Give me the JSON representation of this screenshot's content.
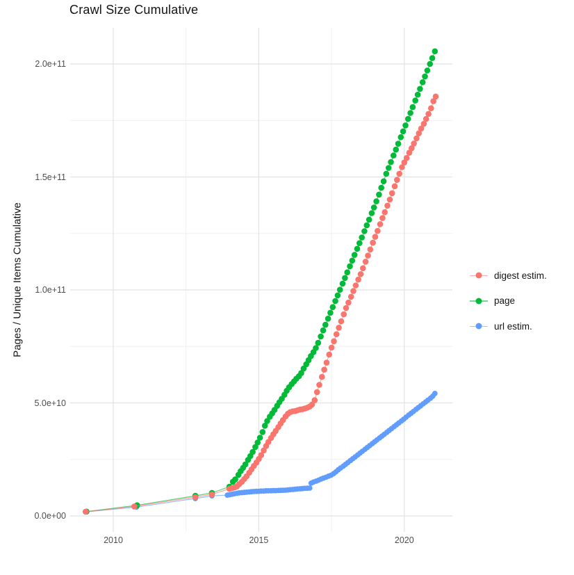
{
  "chart_data": {
    "type": "scatter",
    "title": "Crawl Size Cumulative",
    "xlabel": "",
    "ylabel": "Pages / Unique Items Cumulative",
    "values_unit": "billions (1e9 items)",
    "grid": true,
    "legend_position": "right",
    "x_axis": {
      "range": [
        2008.5,
        2021.65
      ],
      "major_ticks": [
        2010,
        2015,
        2020
      ],
      "tick_labels": [
        "2010",
        "2015",
        "2020"
      ],
      "minor_ticks": [
        2012.5,
        2017.5
      ]
    },
    "y_axis": {
      "range_billions": [
        0,
        216
      ],
      "major_ticks_billions": [
        0,
        50,
        100,
        150,
        200
      ],
      "tick_labels": [
        "0.0e+00",
        "5.0e+10",
        "1.0e+11",
        "1.5e+11",
        "2.0e+11"
      ],
      "minor_ticks_billions": [
        25,
        75,
        125,
        175
      ]
    },
    "series": [
      {
        "name": "digest estim.",
        "color": "#F8766D",
        "points": [
          [
            2009.05,
            1.85
          ],
          [
            2010.72,
            4.2
          ],
          [
            2012.82,
            8.3
          ],
          [
            2013.39,
            9.5
          ],
          [
            2013.99,
            12.0
          ],
          [
            2014.08,
            12.3
          ],
          [
            2014.17,
            12.6
          ],
          [
            2014.25,
            13.1
          ],
          [
            2014.33,
            14.1
          ],
          [
            2014.42,
            15.1
          ],
          [
            2014.5,
            16.3
          ],
          [
            2014.58,
            17.5
          ],
          [
            2014.67,
            19.1
          ],
          [
            2014.75,
            20.6
          ],
          [
            2014.83,
            22.1
          ],
          [
            2014.92,
            23.6
          ],
          [
            2015.0,
            25.2
          ],
          [
            2015.08,
            26.9
          ],
          [
            2015.17,
            29.0
          ],
          [
            2015.25,
            30.9
          ],
          [
            2015.33,
            32.7
          ],
          [
            2015.42,
            34.5
          ],
          [
            2015.5,
            36.1
          ],
          [
            2015.58,
            37.6
          ],
          [
            2015.67,
            39.3
          ],
          [
            2015.75,
            40.9
          ],
          [
            2015.83,
            42.4
          ],
          [
            2015.92,
            44.0
          ],
          [
            2016.0,
            45.2
          ],
          [
            2016.08,
            45.9
          ],
          [
            2016.17,
            46.3
          ],
          [
            2016.25,
            46.4
          ],
          [
            2016.33,
            46.7
          ],
          [
            2016.42,
            47.1
          ],
          [
            2016.5,
            47.2
          ],
          [
            2016.58,
            47.5
          ],
          [
            2016.67,
            47.9
          ],
          [
            2016.75,
            48.4
          ],
          [
            2016.83,
            49.3
          ],
          [
            2016.92,
            51.2
          ],
          [
            2017.0,
            54.8
          ],
          [
            2017.08,
            58.0
          ],
          [
            2017.17,
            61.5
          ],
          [
            2017.25,
            64.7
          ],
          [
            2017.33,
            67.8
          ],
          [
            2017.42,
            71.4
          ],
          [
            2017.5,
            74.5
          ],
          [
            2017.58,
            77.3
          ],
          [
            2017.67,
            80.4
          ],
          [
            2017.75,
            83.3
          ],
          [
            2017.83,
            86.1
          ],
          [
            2017.92,
            89.2
          ],
          [
            2018.0,
            92.0
          ],
          [
            2018.08,
            94.4
          ],
          [
            2018.17,
            97.0
          ],
          [
            2018.25,
            99.5
          ],
          [
            2018.33,
            102.0
          ],
          [
            2018.42,
            104.6
          ],
          [
            2018.5,
            107.0
          ],
          [
            2018.58,
            109.6
          ],
          [
            2018.67,
            112.5
          ],
          [
            2018.75,
            115.2
          ],
          [
            2018.83,
            117.9
          ],
          [
            2018.92,
            120.9
          ],
          [
            2019.0,
            123.5
          ],
          [
            2019.08,
            126.1
          ],
          [
            2019.17,
            129.1
          ],
          [
            2019.25,
            131.8
          ],
          [
            2019.33,
            134.4
          ],
          [
            2019.42,
            137.3
          ],
          [
            2019.5,
            140.0
          ],
          [
            2019.58,
            142.8
          ],
          [
            2019.67,
            145.9
          ],
          [
            2019.75,
            148.7
          ],
          [
            2019.83,
            151.4
          ],
          [
            2019.92,
            154.3
          ],
          [
            2020.0,
            156.4
          ],
          [
            2020.08,
            158.4
          ],
          [
            2020.17,
            160.7
          ],
          [
            2020.25,
            162.7
          ],
          [
            2020.33,
            164.8
          ],
          [
            2020.42,
            167.1
          ],
          [
            2020.5,
            169.3
          ],
          [
            2020.58,
            171.4
          ],
          [
            2020.67,
            173.5
          ],
          [
            2020.75,
            175.7
          ],
          [
            2020.83,
            177.9
          ],
          [
            2020.92,
            180.4
          ],
          [
            2021.0,
            183.5
          ],
          [
            2021.08,
            185.6
          ]
        ]
      },
      {
        "name": "page",
        "color": "#00BA38",
        "points": [
          [
            2009.08,
            1.9
          ],
          [
            2010.82,
            4.7
          ],
          [
            2012.82,
            8.9
          ],
          [
            2013.39,
            10.2
          ],
          [
            2013.99,
            12.9
          ],
          [
            2014.11,
            15.1
          ],
          [
            2014.19,
            16.2
          ],
          [
            2014.3,
            18.2
          ],
          [
            2014.38,
            19.8
          ],
          [
            2014.46,
            21.3
          ],
          [
            2014.54,
            22.8
          ],
          [
            2014.63,
            24.8
          ],
          [
            2014.71,
            26.5
          ],
          [
            2014.79,
            28.3
          ],
          [
            2014.88,
            30.5
          ],
          [
            2014.96,
            32.5
          ],
          [
            2015.04,
            34.6
          ],
          [
            2015.13,
            37.1
          ],
          [
            2015.21,
            39.9
          ],
          [
            2015.29,
            42.0
          ],
          [
            2015.38,
            43.9
          ],
          [
            2015.46,
            45.4
          ],
          [
            2015.54,
            46.9
          ],
          [
            2015.63,
            48.7
          ],
          [
            2015.71,
            50.3
          ],
          [
            2015.79,
            51.8
          ],
          [
            2015.88,
            53.6
          ],
          [
            2015.96,
            55.4
          ],
          [
            2016.04,
            56.9
          ],
          [
            2016.13,
            58.3
          ],
          [
            2016.21,
            59.5
          ],
          [
            2016.29,
            60.7
          ],
          [
            2016.38,
            61.8
          ],
          [
            2016.46,
            63.2
          ],
          [
            2016.54,
            65.2
          ],
          [
            2016.63,
            67.1
          ],
          [
            2016.71,
            68.9
          ],
          [
            2016.79,
            70.7
          ],
          [
            2016.88,
            72.5
          ],
          [
            2016.96,
            74.3
          ],
          [
            2017.04,
            76.6
          ],
          [
            2017.13,
            79.4
          ],
          [
            2017.21,
            82.1
          ],
          [
            2017.29,
            84.6
          ],
          [
            2017.38,
            87.3
          ],
          [
            2017.46,
            89.9
          ],
          [
            2017.54,
            92.4
          ],
          [
            2017.63,
            95.1
          ],
          [
            2017.71,
            97.6
          ],
          [
            2017.79,
            100.1
          ],
          [
            2017.88,
            102.8
          ],
          [
            2017.96,
            105.3
          ],
          [
            2018.04,
            107.8
          ],
          [
            2018.13,
            110.5
          ],
          [
            2018.21,
            113.0
          ],
          [
            2018.29,
            115.5
          ],
          [
            2018.38,
            118.2
          ],
          [
            2018.46,
            120.7
          ],
          [
            2018.54,
            123.2
          ],
          [
            2018.63,
            126.0
          ],
          [
            2018.71,
            128.6
          ],
          [
            2018.79,
            131.1
          ],
          [
            2018.88,
            134.0
          ],
          [
            2018.96,
            136.5
          ],
          [
            2019.04,
            139.2
          ],
          [
            2019.13,
            142.2
          ],
          [
            2019.21,
            145.2
          ],
          [
            2019.29,
            148.1
          ],
          [
            2019.38,
            151.4
          ],
          [
            2019.46,
            154.0
          ],
          [
            2019.54,
            156.6
          ],
          [
            2019.63,
            159.5
          ],
          [
            2019.71,
            162.1
          ],
          [
            2019.79,
            164.7
          ],
          [
            2019.88,
            167.6
          ],
          [
            2019.96,
            170.2
          ],
          [
            2020.04,
            172.8
          ],
          [
            2020.13,
            175.7
          ],
          [
            2020.21,
            178.3
          ],
          [
            2020.29,
            180.9
          ],
          [
            2020.38,
            183.8
          ],
          [
            2020.46,
            186.4
          ],
          [
            2020.54,
            189.0
          ],
          [
            2020.63,
            191.9
          ],
          [
            2020.71,
            194.5
          ],
          [
            2020.79,
            197.1
          ],
          [
            2020.88,
            200.0
          ],
          [
            2020.96,
            202.6
          ],
          [
            2021.05,
            205.6
          ]
        ]
      },
      {
        "name": "url estim.",
        "color": "#619CFF",
        "points": [
          [
            2009.08,
            1.8
          ],
          [
            2010.8,
            3.9
          ],
          [
            2012.82,
            7.7
          ],
          [
            2013.39,
            8.9
          ],
          [
            2013.92,
            9.2
          ],
          [
            2014.0,
            9.4
          ],
          [
            2014.08,
            9.6
          ],
          [
            2014.16,
            9.8
          ],
          [
            2014.25,
            10.0
          ],
          [
            2014.33,
            10.2
          ],
          [
            2014.42,
            10.3
          ],
          [
            2014.5,
            10.4
          ],
          [
            2014.58,
            10.5
          ],
          [
            2014.67,
            10.6
          ],
          [
            2014.75,
            10.7
          ],
          [
            2014.83,
            10.8
          ],
          [
            2014.92,
            10.85
          ],
          [
            2015.0,
            10.9
          ],
          [
            2015.08,
            11.0
          ],
          [
            2015.17,
            11.0
          ],
          [
            2015.25,
            11.1
          ],
          [
            2015.33,
            11.1
          ],
          [
            2015.42,
            11.15
          ],
          [
            2015.5,
            11.2
          ],
          [
            2015.58,
            11.2
          ],
          [
            2015.67,
            11.25
          ],
          [
            2015.75,
            11.3
          ],
          [
            2015.83,
            11.35
          ],
          [
            2015.92,
            11.4
          ],
          [
            2016.0,
            11.5
          ],
          [
            2016.08,
            11.6
          ],
          [
            2016.17,
            11.7
          ],
          [
            2016.25,
            11.8
          ],
          [
            2016.33,
            11.9
          ],
          [
            2016.42,
            12.0
          ],
          [
            2016.5,
            12.1
          ],
          [
            2016.58,
            12.2
          ],
          [
            2016.67,
            12.25
          ],
          [
            2016.75,
            12.3
          ],
          [
            2016.8,
            14.5
          ],
          [
            2016.88,
            15.0
          ],
          [
            2016.97,
            15.4
          ],
          [
            2017.05,
            15.8
          ],
          [
            2017.14,
            16.3
          ],
          [
            2017.22,
            16.7
          ],
          [
            2017.31,
            17.1
          ],
          [
            2017.4,
            17.6
          ],
          [
            2017.48,
            18.0
          ],
          [
            2017.57,
            18.7
          ],
          [
            2017.65,
            19.5
          ],
          [
            2017.73,
            20.4
          ],
          [
            2017.81,
            21.2
          ],
          [
            2017.9,
            22.0
          ],
          [
            2017.98,
            22.8
          ],
          [
            2018.06,
            23.6
          ],
          [
            2018.15,
            24.5
          ],
          [
            2018.23,
            25.3
          ],
          [
            2018.31,
            26.1
          ],
          [
            2018.4,
            27.0
          ],
          [
            2018.48,
            27.8
          ],
          [
            2018.56,
            28.6
          ],
          [
            2018.65,
            29.5
          ],
          [
            2018.73,
            30.3
          ],
          [
            2018.81,
            31.1
          ],
          [
            2018.9,
            32.0
          ],
          [
            2018.98,
            32.8
          ],
          [
            2019.06,
            33.6
          ],
          [
            2019.15,
            34.5
          ],
          [
            2019.23,
            35.3
          ],
          [
            2019.31,
            36.1
          ],
          [
            2019.4,
            37.0
          ],
          [
            2019.48,
            37.8
          ],
          [
            2019.56,
            38.6
          ],
          [
            2019.65,
            39.5
          ],
          [
            2019.73,
            40.3
          ],
          [
            2019.81,
            41.1
          ],
          [
            2019.9,
            42.0
          ],
          [
            2019.98,
            42.8
          ],
          [
            2020.06,
            43.7
          ],
          [
            2020.15,
            44.6
          ],
          [
            2020.23,
            45.4
          ],
          [
            2020.31,
            46.2
          ],
          [
            2020.4,
            47.1
          ],
          [
            2020.48,
            47.9
          ],
          [
            2020.56,
            48.7
          ],
          [
            2020.65,
            49.6
          ],
          [
            2020.73,
            50.4
          ],
          [
            2020.81,
            51.2
          ],
          [
            2020.9,
            52.1
          ],
          [
            2020.98,
            53.0
          ],
          [
            2021.05,
            54.2
          ]
        ]
      }
    ],
    "style_colors": {
      "grid_major": "#e2e2e2",
      "grid_minor": "#f0f0f0",
      "tick_label": "#4d4d4d",
      "text": "#141414",
      "background": "#ffffff"
    }
  }
}
